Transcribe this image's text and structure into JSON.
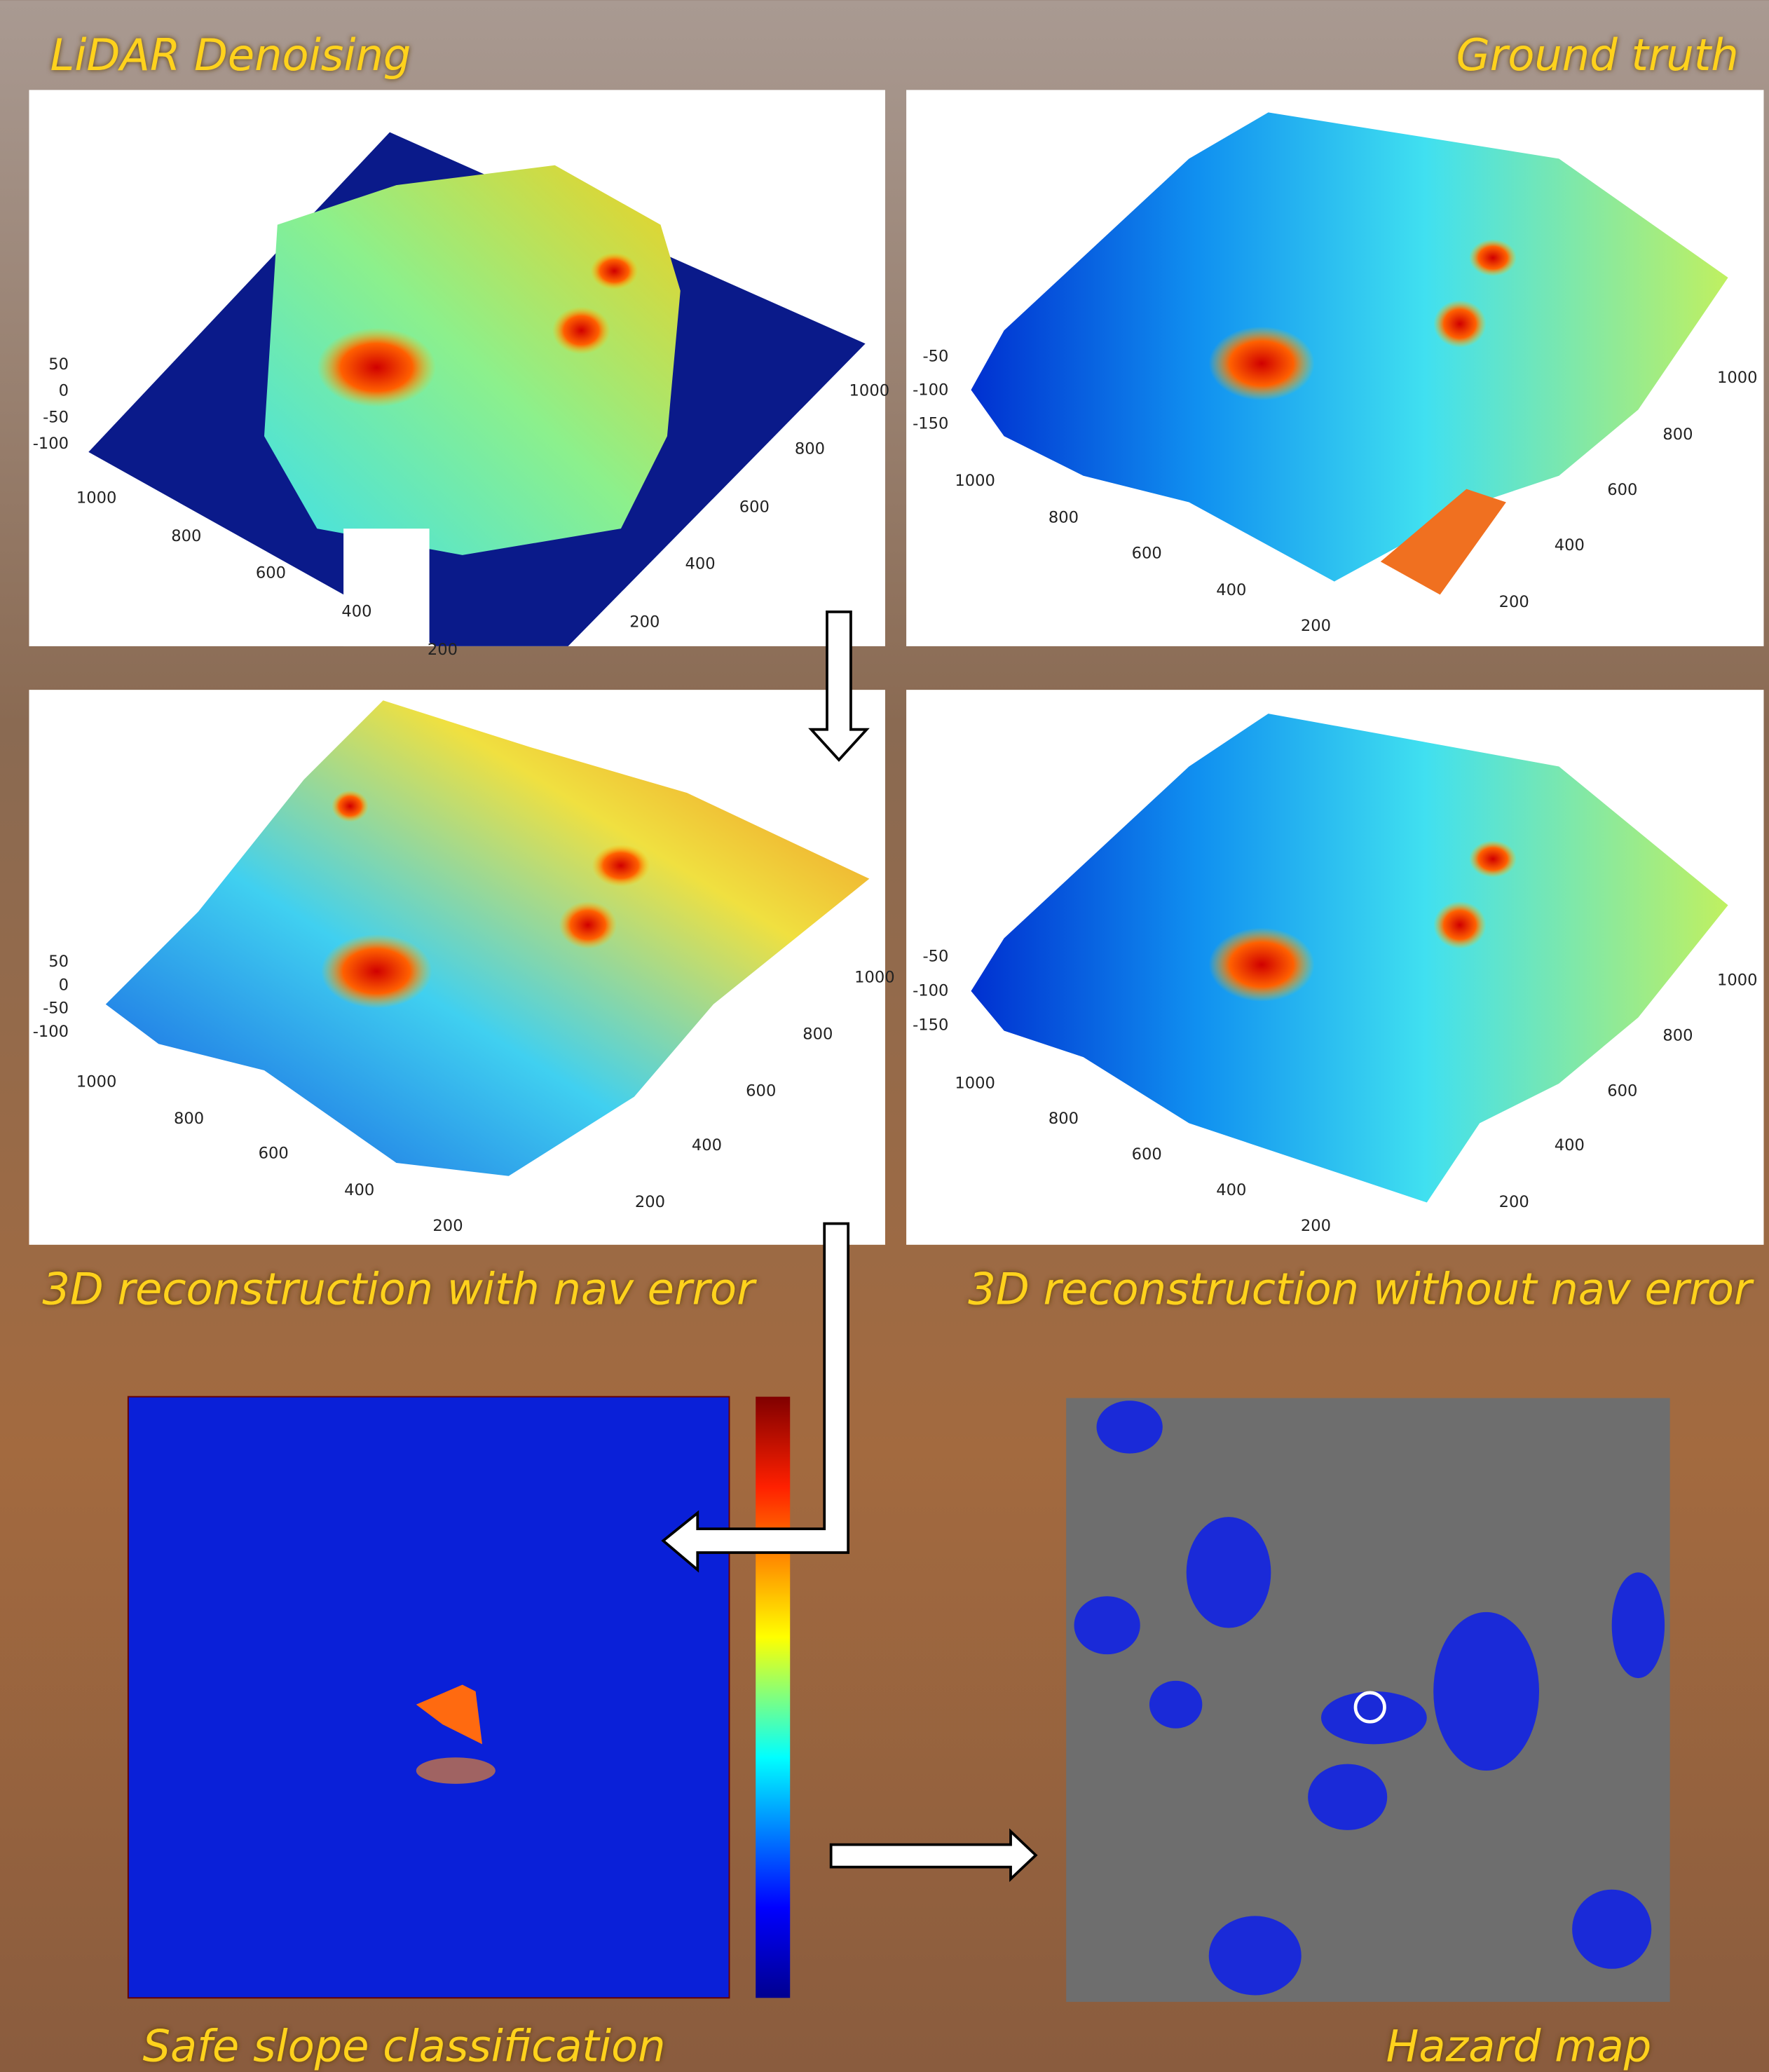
{
  "panels": [
    {
      "title": "LiDAR Denoising",
      "z_ticks": [
        50,
        0,
        -50,
        -100
      ],
      "x_ticks": [
        1000,
        800,
        600,
        400,
        200
      ],
      "y_ticks": [
        200,
        400,
        600,
        800,
        1000
      ]
    },
    {
      "title": "Ground truth",
      "z_ticks": [
        -50,
        -100,
        -150
      ],
      "x_ticks": [
        1000,
        800,
        600,
        400,
        200
      ],
      "y_ticks": [
        200,
        400,
        600,
        800,
        1000
      ]
    },
    {
      "title": "3D reconstruction with nav error",
      "z_ticks": [
        50,
        0,
        -50,
        -100
      ],
      "x_ticks": [
        1000,
        800,
        600,
        400,
        200
      ],
      "y_ticks": [
        200,
        400,
        600,
        800,
        1000
      ]
    },
    {
      "title": "3D reconstruction without nav error",
      "z_ticks": [
        -50,
        -100,
        -150
      ],
      "x_ticks": [
        1000,
        800,
        600,
        400,
        200
      ],
      "y_ticks": [
        200,
        400,
        600,
        800,
        1000
      ]
    },
    {
      "title": "Safe slope classification"
    },
    {
      "title": "Hazard map"
    }
  ]
}
